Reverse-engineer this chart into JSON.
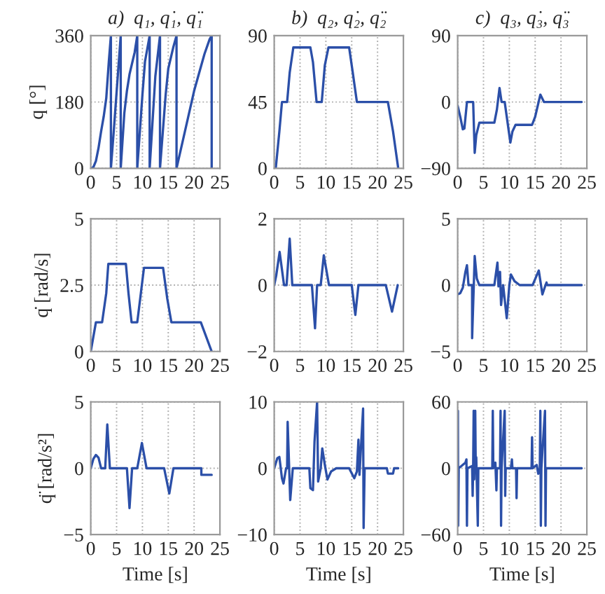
{
  "chart_data": [
    {
      "type": "line",
      "title": "a)  q₁, q̇₁, q̈₁",
      "ylabel": "q [°]",
      "x": [
        0,
        0.5,
        1,
        1.5,
        2,
        2.5,
        3,
        3.5,
        3.9,
        3.9,
        4.5,
        5.8,
        5.8,
        6.5,
        7,
        7.5,
        8,
        8.5,
        9,
        9,
        10,
        10.5,
        11.4,
        11.4,
        12.5,
        13.4,
        13.4,
        14.5,
        15,
        16,
        16.6,
        16.6,
        20,
        22,
        23,
        23.4,
        23.4
      ],
      "series": [
        {
          "color": "#2b4fa8",
          "values": [
            0,
            3,
            20,
            55,
            100,
            140,
            190,
            290,
            360,
            0,
            110,
            360,
            0,
            150,
            210,
            255,
            285,
            315,
            360,
            0,
            200,
            290,
            360,
            0,
            250,
            360,
            0,
            200,
            270,
            330,
            360,
            0,
            210,
            310,
            350,
            360,
            0
          ]
        }
      ],
      "xlim": [
        0,
        25
      ],
      "xticks": [
        0,
        5,
        10,
        15,
        20,
        25
      ],
      "ylim": [
        0,
        360
      ],
      "yticks": [
        0,
        180,
        360
      ],
      "grid": true,
      "line_style": "solid"
    },
    {
      "type": "line",
      "title": "b)  q₂, q̇₂, q̈₂",
      "x": [
        0,
        0.3,
        1,
        1.5,
        2.5,
        3,
        3.7,
        7,
        7.5,
        8.2,
        9.2,
        9.8,
        10.5,
        14.5,
        15.2,
        16,
        22,
        23,
        24
      ],
      "series": [
        {
          "color": "#2b4fa8",
          "values": [
            0,
            0,
            25,
            45,
            45,
            65,
            82,
            82,
            72,
            45,
            45,
            70,
            82,
            82,
            65,
            45,
            45,
            25,
            0
          ]
        }
      ],
      "xlim": [
        0,
        25
      ],
      "xticks": [
        0,
        5,
        10,
        15,
        20,
        25
      ],
      "ylim": [
        0,
        90
      ],
      "yticks": [
        0,
        45,
        90
      ],
      "grid": true,
      "line_style": "solid"
    },
    {
      "type": "line",
      "title": "c)  q₃, q̇₃, q̈₃",
      "x": [
        0,
        0.5,
        1,
        1.3,
        1.8,
        3,
        3.3,
        3.6,
        4.2,
        7.1,
        7.6,
        8.1,
        8.5,
        9.1,
        10.2,
        10.6,
        11.2,
        14.4,
        15,
        16,
        16.7,
        24
      ],
      "series": [
        {
          "color": "#2b4fa8",
          "values": [
            -5,
            -20,
            -37,
            -36,
            0,
            0,
            -69,
            -45,
            -28,
            -28,
            -10,
            19,
            0,
            0,
            -55,
            -40,
            -31,
            -31,
            -20,
            10,
            0,
            0
          ]
        }
      ],
      "xlim": [
        0,
        25
      ],
      "xticks": [
        0,
        5,
        10,
        15,
        20,
        25
      ],
      "ylim": [
        -90,
        90
      ],
      "yticks": [
        {
          "value": -90,
          "label": "−90"
        },
        0,
        90
      ],
      "grid": true,
      "line_style": "solid"
    },
    {
      "type": "line",
      "ylabel": "q̇ [rad/s]",
      "x": [
        0,
        1,
        2.2,
        3,
        3.4,
        6.8,
        7.3,
        7.9,
        9,
        9.7,
        10.3,
        14,
        14.8,
        15.6,
        21.3,
        23.4
      ],
      "series": [
        {
          "color": "#2b4fa8",
          "values": [
            0,
            1.1,
            1.1,
            2.2,
            3.3,
            3.3,
            2.2,
            1.1,
            1.1,
            2.2,
            3.15,
            3.15,
            2,
            1.1,
            1.1,
            0
          ]
        }
      ],
      "xlim": [
        0,
        25
      ],
      "xticks": [
        0,
        5,
        10,
        15,
        20,
        25
      ],
      "ylim": [
        0,
        5
      ],
      "yticks": [
        0,
        2.5,
        5
      ],
      "grid": true,
      "line_style": "solid"
    },
    {
      "type": "line",
      "x": [
        0,
        0.4,
        1.05,
        1.9,
        2.4,
        3.0,
        3.5,
        7.3,
        7.9,
        8.3,
        9,
        9.6,
        10.6,
        15,
        15.7,
        16.3,
        21.6,
        22.8,
        23.9
      ],
      "series": [
        {
          "color": "#2b4fa8",
          "values": [
            0,
            0.3,
            1.0,
            0,
            0,
            1.4,
            0,
            0,
            -1.3,
            0,
            0,
            0.9,
            0,
            0,
            -0.9,
            0,
            0,
            -0.8,
            0
          ]
        }
      ],
      "xlim": [
        0,
        25
      ],
      "xticks": [
        0,
        5,
        10,
        15,
        20,
        25
      ],
      "ylim": [
        -2,
        2
      ],
      "yticks": [
        {
          "value": -2,
          "label": "−2"
        },
        0,
        2
      ],
      "grid": true,
      "line_style": "solid"
    },
    {
      "type": "line",
      "x": [
        0,
        0.5,
        1,
        1.5,
        1.8,
        2.1,
        2.8,
        2.8,
        3.3,
        3.7,
        4.2,
        7.1,
        7.7,
        7.9,
        8.2,
        8.4,
        8.8,
        9.5,
        10,
        10.3,
        11,
        12,
        14.5,
        15.7,
        16.4,
        17,
        17.2,
        17.3,
        24
      ],
      "series": [
        {
          "color": "#2b4fa8",
          "values": [
            -0.7,
            -0.6,
            -0.2,
            1,
            1.5,
            0,
            0,
            -4,
            2.2,
            0.5,
            0,
            0,
            1.7,
            -0.1,
            1,
            -1.5,
            0,
            -2.5,
            0,
            0.8,
            0.3,
            0,
            0,
            1.1,
            -0.7,
            0,
            0.2,
            0,
            0
          ]
        }
      ],
      "xlim": [
        0,
        25
      ],
      "xticks": [
        0,
        5,
        10,
        15,
        20,
        25
      ],
      "ylim": [
        -5,
        5
      ],
      "yticks": [
        {
          "value": -5,
          "label": "−5"
        },
        0,
        5
      ],
      "grid": true,
      "line_style": "solid"
    },
    {
      "type": "line",
      "xlabel": "Time [s]",
      "ylabel": "q̈ [rad/s²]",
      "x": [
        0,
        0.5,
        1,
        1.5,
        2,
        2.8,
        3.2,
        3.7,
        7,
        7.5,
        8,
        9,
        9.9,
        10.8,
        14.2,
        15.2,
        16,
        21.4,
        21.4,
        23.4
      ],
      "series": [
        {
          "color": "#2b4fa8",
          "values": [
            0,
            0.7,
            1,
            0.8,
            0,
            0,
            3.3,
            0,
            0,
            -3.0,
            0,
            0,
            1.9,
            0,
            0,
            -1.9,
            0,
            0,
            -0.5,
            -0.5
          ]
        }
      ],
      "xlim": [
        0,
        25
      ],
      "xticks": [
        0,
        5,
        10,
        15,
        20,
        25
      ],
      "ylim": [
        -5,
        5
      ],
      "yticks": [
        {
          "value": -5,
          "label": "−5"
        },
        0,
        5
      ],
      "grid": true,
      "line_style": "solid"
    },
    {
      "type": "line",
      "xlabel": "Time [s]",
      "x": [
        0,
        0.6,
        1,
        1.5,
        1.8,
        2.3,
        2.5,
        2.6,
        3.1,
        3.6,
        6.8,
        7,
        7.5,
        7.8,
        8.3,
        8.5,
        9,
        9.3,
        9.8,
        10.3,
        11,
        12,
        14.5,
        15.5,
        16,
        16.3,
        16.5,
        17.2,
        17.3,
        17.5,
        21.8,
        22,
        23,
        23.2,
        24
      ],
      "series": [
        {
          "color": "#2b4fa8",
          "values": [
            0,
            1.5,
            1.7,
            -1.5,
            -2.3,
            0,
            0,
            7,
            -4.8,
            0,
            0,
            -3,
            -3.3,
            4,
            10,
            -2,
            0,
            3,
            0.5,
            -1.7,
            -0.5,
            0,
            0,
            -1.5,
            -0.5,
            4.3,
            -1,
            9,
            -9,
            0,
            0,
            -0.8,
            -0.8,
            0,
            0
          ]
        }
      ],
      "xlim": [
        0,
        25
      ],
      "xticks": [
        0,
        5,
        10,
        15,
        20,
        25
      ],
      "ylim": [
        -10,
        10
      ],
      "yticks": [
        {
          "value": -10,
          "label": "−10"
        },
        0,
        10
      ],
      "grid": true,
      "line_style": "solid"
    },
    {
      "type": "line",
      "xlabel": "Time [s]",
      "x": [
        0,
        0.05,
        0.1,
        0.2,
        1.5,
        1.7,
        1.8,
        1.9,
        2.8,
        2.9,
        3.0,
        3.1,
        3.2,
        3.4,
        3.5,
        3.6,
        3.9,
        4.0,
        6.7,
        6.8,
        6.9,
        7.3,
        7.5,
        7.6,
        8.2,
        8.3,
        8.4,
        8.5,
        9.1,
        9.2,
        9.3,
        10.3,
        10.5,
        10.6,
        11.3,
        11.4,
        11.5,
        14.3,
        14.4,
        14.5,
        15.3,
        15.6,
        15.9,
        16.0,
        16.1,
        16.2,
        16.9,
        17.0,
        17.1,
        24
      ],
      "series": [
        {
          "color": "#2b4fa8",
          "values": [
            0,
            52,
            -52,
            0,
            5,
            8,
            -52,
            0,
            2,
            -25,
            0,
            52,
            -10,
            52,
            0,
            10,
            -52,
            0,
            0,
            52,
            0,
            5,
            -20,
            0,
            0,
            52,
            -52,
            0,
            52,
            -25,
            0,
            0,
            8,
            0,
            0,
            -27,
            0,
            0,
            28,
            0,
            3,
            -5,
            0,
            52,
            -52,
            0,
            52,
            -52,
            0,
            0
          ]
        }
      ],
      "xlim": [
        0,
        25
      ],
      "xticks": [
        0,
        5,
        10,
        15,
        20,
        25
      ],
      "ylim": [
        -60,
        60
      ],
      "yticks": [
        {
          "value": -60,
          "label": "−60"
        },
        0,
        60
      ],
      "grid": true,
      "line_style": "solid"
    }
  ]
}
